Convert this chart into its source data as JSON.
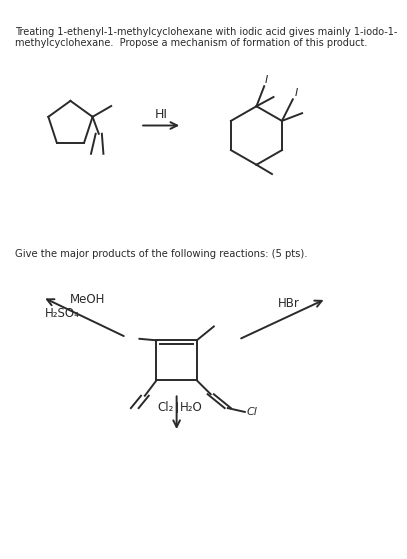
{
  "background_color": "#ffffff",
  "text_color": "#2a2a2a",
  "title_line1": "Treating 1-ethenyl-1-methylcyclohexane with iodic acid gives mainly 1-iodo-1-",
  "title_line2": "methylcyclohexane.  Propose a mechanism of formation of this product.",
  "subtitle": "Give the major products of the following reactions: (5 pts).",
  "reagent1": "HI",
  "reagent2_left": "MeOH",
  "reagent2_left2": "H₂SO₄",
  "reagent2_right": "HBr",
  "reagent3_left": "Cl₂",
  "reagent3_right": "H₂O",
  "label_I": "I",
  "label_Cl": "Cl"
}
